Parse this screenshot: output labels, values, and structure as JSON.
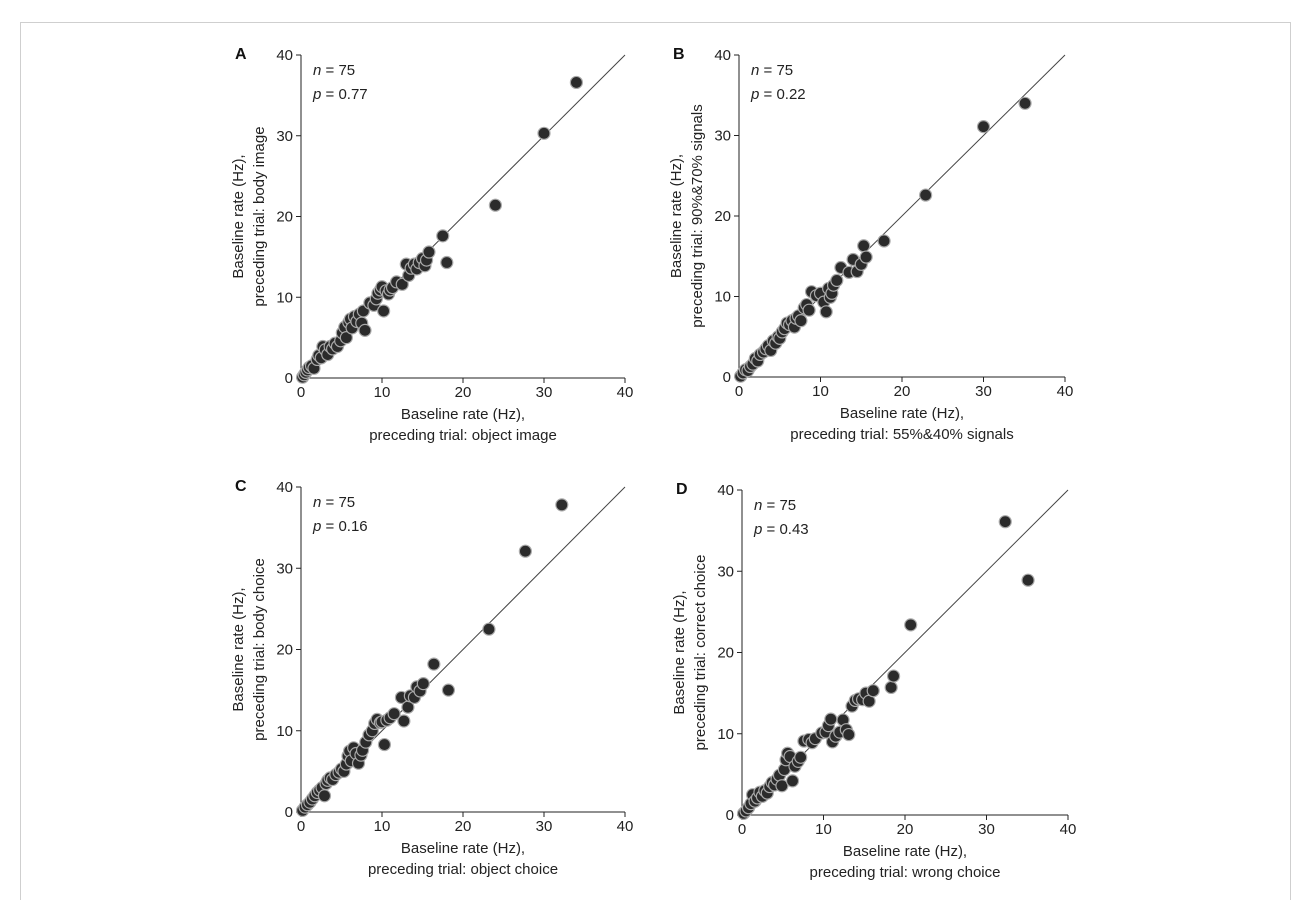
{
  "chart_data": [
    {
      "type": "scatter",
      "panel": "A",
      "n_label": "n",
      "n_value": " = 75",
      "p_label": "p",
      "p_value": " = 0.77",
      "xlabel": [
        "Baseline rate (Hz),",
        "preceding trial: object image"
      ],
      "ylabel": [
        "Baseline rate (Hz),",
        "preceding trial: body image"
      ],
      "xlim": [
        0,
        40
      ],
      "ylim": [
        0,
        40
      ],
      "xticks": [
        "0",
        "10",
        "20",
        "30",
        "40"
      ],
      "yticks": [
        "0",
        "10",
        "20",
        "30",
        "40"
      ],
      "identity_line": true,
      "marker_color": "#2b2b2b",
      "points": [
        [
          0.2,
          0.1
        ],
        [
          0.4,
          0.4
        ],
        [
          0.6,
          0.7
        ],
        [
          0.8,
          1.0
        ],
        [
          1.0,
          1.3
        ],
        [
          1.3,
          1.5
        ],
        [
          1.6,
          1.2
        ],
        [
          2.0,
          2.3
        ],
        [
          2.2,
          2.8
        ],
        [
          2.5,
          2.5
        ],
        [
          2.7,
          3.9
        ],
        [
          3.0,
          3.5
        ],
        [
          3.3,
          2.9
        ],
        [
          3.6,
          3.9
        ],
        [
          3.9,
          3.6
        ],
        [
          4.2,
          4.3
        ],
        [
          4.5,
          3.9
        ],
        [
          4.9,
          4.6
        ],
        [
          5.1,
          5.6
        ],
        [
          5.4,
          6.3
        ],
        [
          5.6,
          5.0
        ],
        [
          5.9,
          6.9
        ],
        [
          6.1,
          7.3
        ],
        [
          6.3,
          6.2
        ],
        [
          6.6,
          7.6
        ],
        [
          6.9,
          7.0
        ],
        [
          7.2,
          7.9
        ],
        [
          7.5,
          6.8
        ],
        [
          7.7,
          8.3
        ],
        [
          7.9,
          5.9
        ],
        [
          8.5,
          9.3
        ],
        [
          9.0,
          9.0
        ],
        [
          9.3,
          9.8
        ],
        [
          9.5,
          10.5
        ],
        [
          9.8,
          10.9
        ],
        [
          10.0,
          11.3
        ],
        [
          10.2,
          8.3
        ],
        [
          10.5,
          10.8
        ],
        [
          10.8,
          10.4
        ],
        [
          11.0,
          10.9
        ],
        [
          11.3,
          11.2
        ],
        [
          11.8,
          11.9
        ],
        [
          12.5,
          11.6
        ],
        [
          13.0,
          14.1
        ],
        [
          13.3,
          12.7
        ],
        [
          13.6,
          13.6
        ],
        [
          14.0,
          14.1
        ],
        [
          14.3,
          13.5
        ],
        [
          14.6,
          14.3
        ],
        [
          15.0,
          14.8
        ],
        [
          15.3,
          13.9
        ],
        [
          15.5,
          14.6
        ],
        [
          15.8,
          15.6
        ],
        [
          17.5,
          17.6
        ],
        [
          18.0,
          14.3
        ],
        [
          24.0,
          21.4
        ],
        [
          30.0,
          30.3
        ],
        [
          34.0,
          36.6
        ]
      ]
    },
    {
      "type": "scatter",
      "panel": "B",
      "n_label": "n",
      "n_value": " = 75",
      "p_label": "p",
      "p_value": " = 0.22",
      "xlabel": [
        "Baseline rate (Hz),",
        "preceding trial: 55%&40% signals"
      ],
      "ylabel": [
        "Baseline rate (Hz),",
        "preceding trial: 90%&70% signals"
      ],
      "xlim": [
        0,
        40
      ],
      "ylim": [
        0,
        40
      ],
      "xticks": [
        "0",
        "10",
        "20",
        "30",
        "40"
      ],
      "yticks": [
        "0",
        "10",
        "20",
        "30",
        "40"
      ],
      "identity_line": true,
      "marker_color": "#2b2b2b",
      "points": [
        [
          0.2,
          0.1
        ],
        [
          0.5,
          0.5
        ],
        [
          0.8,
          0.9
        ],
        [
          1.1,
          0.8
        ],
        [
          1.4,
          1.3
        ],
        [
          1.7,
          1.6
        ],
        [
          2.0,
          2.3
        ],
        [
          2.3,
          2.0
        ],
        [
          2.6,
          2.8
        ],
        [
          3.0,
          3.1
        ],
        [
          3.3,
          3.5
        ],
        [
          3.6,
          3.9
        ],
        [
          3.9,
          3.3
        ],
        [
          4.2,
          4.5
        ],
        [
          4.5,
          4.2
        ],
        [
          4.8,
          5.0
        ],
        [
          5.0,
          4.8
        ],
        [
          5.3,
          5.6
        ],
        [
          5.6,
          6.0
        ],
        [
          5.9,
          6.7
        ],
        [
          6.2,
          6.5
        ],
        [
          6.5,
          7.0
        ],
        [
          6.8,
          6.2
        ],
        [
          7.0,
          7.3
        ],
        [
          7.3,
          7.6
        ],
        [
          7.6,
          7.0
        ],
        [
          8.0,
          8.6
        ],
        [
          8.3,
          9.0
        ],
        [
          8.6,
          8.3
        ],
        [
          8.9,
          10.6
        ],
        [
          9.5,
          10.1
        ],
        [
          10.0,
          10.4
        ],
        [
          10.4,
          9.3
        ],
        [
          10.7,
          8.1
        ],
        [
          11.0,
          11.0
        ],
        [
          11.2,
          9.9
        ],
        [
          11.4,
          10.4
        ],
        [
          11.6,
          11.4
        ],
        [
          12.0,
          12.0
        ],
        [
          12.5,
          13.6
        ],
        [
          13.5,
          13.0
        ],
        [
          14.0,
          14.6
        ],
        [
          14.5,
          13.1
        ],
        [
          15.0,
          14.0
        ],
        [
          15.3,
          16.3
        ],
        [
          15.6,
          14.9
        ],
        [
          17.8,
          16.9
        ],
        [
          22.9,
          22.6
        ],
        [
          30.0,
          31.1
        ],
        [
          35.1,
          34.0
        ]
      ]
    },
    {
      "type": "scatter",
      "panel": "C",
      "n_label": "n",
      "n_value": " = 75",
      "p_label": "p",
      "p_value": " = 0.16",
      "xlabel": [
        "Baseline rate (Hz),",
        "preceding trial: object choice"
      ],
      "ylabel": [
        "Baseline rate (Hz),",
        "preceding trial: body choice"
      ],
      "xlim": [
        0,
        40
      ],
      "ylim": [
        0,
        40
      ],
      "xticks": [
        "0",
        "10",
        "20",
        "30",
        "40"
      ],
      "yticks": [
        "0",
        "10",
        "20",
        "30",
        "40"
      ],
      "identity_line": true,
      "marker_color": "#2b2b2b",
      "points": [
        [
          0.2,
          0.2
        ],
        [
          0.5,
          0.6
        ],
        [
          0.8,
          0.9
        ],
        [
          1.1,
          1.2
        ],
        [
          1.4,
          1.6
        ],
        [
          1.7,
          2.0
        ],
        [
          2.0,
          2.4
        ],
        [
          2.3,
          2.7
        ],
        [
          2.6,
          3.0
        ],
        [
          2.9,
          2.0
        ],
        [
          3.1,
          3.5
        ],
        [
          3.3,
          3.9
        ],
        [
          3.6,
          4.2
        ],
        [
          3.9,
          4.0
        ],
        [
          4.3,
          4.6
        ],
        [
          4.7,
          4.9
        ],
        [
          5.0,
          5.3
        ],
        [
          5.3,
          5.0
        ],
        [
          5.6,
          5.9
        ],
        [
          5.8,
          6.9
        ],
        [
          6.0,
          7.5
        ],
        [
          6.2,
          6.3
        ],
        [
          6.5,
          7.9
        ],
        [
          6.8,
          7.2
        ],
        [
          7.1,
          6.0
        ],
        [
          7.4,
          7.0
        ],
        [
          7.6,
          7.6
        ],
        [
          8.0,
          8.6
        ],
        [
          8.4,
          9.5
        ],
        [
          8.8,
          10.0
        ],
        [
          9.1,
          10.9
        ],
        [
          9.4,
          11.4
        ],
        [
          9.8,
          11.0
        ],
        [
          10.0,
          11.1
        ],
        [
          10.3,
          8.3
        ],
        [
          10.6,
          11.3
        ],
        [
          11.0,
          11.6
        ],
        [
          11.5,
          12.1
        ],
        [
          12.4,
          14.1
        ],
        [
          12.7,
          11.2
        ],
        [
          13.2,
          12.9
        ],
        [
          13.5,
          14.3
        ],
        [
          14.0,
          14.1
        ],
        [
          14.3,
          15.4
        ],
        [
          14.7,
          14.9
        ],
        [
          15.1,
          15.8
        ],
        [
          16.4,
          18.2
        ],
        [
          18.2,
          15.0
        ],
        [
          23.2,
          22.5
        ],
        [
          27.7,
          32.1
        ],
        [
          32.2,
          37.8
        ]
      ]
    },
    {
      "type": "scatter",
      "panel": "D",
      "n_label": "n",
      "n_value": " = 75",
      "p_label": "p",
      "p_value": " = 0.43",
      "xlabel": [
        "Baseline rate (Hz),",
        "preceding trial: wrong choice"
      ],
      "ylabel": [
        "Baseline rate (Hz),",
        "preceding trial: correct choice"
      ],
      "xlim": [
        0,
        40
      ],
      "ylim": [
        0,
        40
      ],
      "xticks": [
        "0",
        "10",
        "20",
        "30",
        "40"
      ],
      "yticks": [
        "0",
        "10",
        "20",
        "30",
        "40"
      ],
      "identity_line": true,
      "marker_color": "#2b2b2b",
      "points": [
        [
          0.2,
          0.2
        ],
        [
          0.5,
          0.5
        ],
        [
          0.8,
          0.9
        ],
        [
          1.1,
          1.4
        ],
        [
          1.3,
          2.5
        ],
        [
          1.6,
          1.7
        ],
        [
          1.9,
          2.1
        ],
        [
          2.2,
          2.8
        ],
        [
          2.5,
          2.3
        ],
        [
          2.8,
          3.0
        ],
        [
          3.1,
          2.7
        ],
        [
          3.4,
          3.5
        ],
        [
          3.7,
          4.0
        ],
        [
          4.0,
          3.7
        ],
        [
          4.3,
          4.4
        ],
        [
          4.6,
          4.9
        ],
        [
          4.9,
          3.6
        ],
        [
          5.2,
          5.6
        ],
        [
          5.4,
          6.8
        ],
        [
          5.6,
          7.6
        ],
        [
          5.9,
          7.2
        ],
        [
          6.2,
          4.2
        ],
        [
          6.5,
          6.0
        ],
        [
          6.9,
          6.6
        ],
        [
          7.2,
          7.1
        ],
        [
          7.6,
          9.1
        ],
        [
          8.2,
          9.3
        ],
        [
          8.6,
          8.9
        ],
        [
          9.0,
          9.4
        ],
        [
          9.8,
          10.1
        ],
        [
          10.3,
          10.2
        ],
        [
          10.6,
          11.0
        ],
        [
          10.9,
          11.8
        ],
        [
          11.1,
          9.0
        ],
        [
          11.5,
          9.7
        ],
        [
          12.0,
          10.2
        ],
        [
          12.4,
          11.7
        ],
        [
          12.8,
          10.5
        ],
        [
          13.1,
          9.9
        ],
        [
          13.5,
          13.4
        ],
        [
          13.9,
          14.1
        ],
        [
          14.3,
          14.3
        ],
        [
          14.8,
          14.2
        ],
        [
          15.2,
          15.0
        ],
        [
          15.6,
          14.0
        ],
        [
          16.1,
          15.3
        ],
        [
          18.3,
          15.7
        ],
        [
          18.6,
          17.1
        ],
        [
          20.7,
          23.4
        ],
        [
          32.3,
          36.1
        ],
        [
          35.1,
          28.9
        ]
      ]
    }
  ]
}
